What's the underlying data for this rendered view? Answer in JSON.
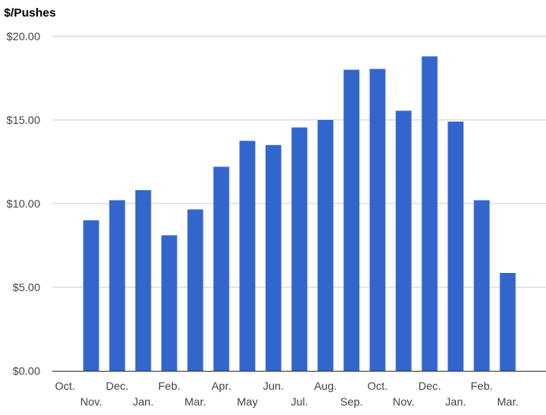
{
  "chart_data": {
    "type": "bar",
    "title": "$/Pushes",
    "xlabel": "",
    "ylabel": "",
    "ylim": [
      0,
      20
    ],
    "yticks": [
      0,
      5,
      10,
      15,
      20
    ],
    "ytick_labels": [
      "$0.00",
      "$5.00",
      "$10.00",
      "$15.00",
      "$20.00"
    ],
    "categories": [
      "Oct.",
      "Nov.",
      "Dec.",
      "Jan.",
      "Feb.",
      "Mar.",
      "Apr.",
      "May",
      "Jun.",
      "Jul.",
      "Aug.",
      "Sep.",
      "Oct.",
      "Nov.",
      "Dec.",
      "Jan.",
      "Feb.",
      "Mar."
    ],
    "values": [
      null,
      9.0,
      10.2,
      10.8,
      8.1,
      9.65,
      12.2,
      13.75,
      13.5,
      14.55,
      15.0,
      18.0,
      18.05,
      15.55,
      18.8,
      14.9,
      10.2,
      5.85
    ],
    "grid": true,
    "legend": "none",
    "colors": {
      "bar": "#3366cc",
      "grid": "#cccccc",
      "axis": "#333333",
      "tick_text": "#444444",
      "title": "#000000"
    }
  }
}
